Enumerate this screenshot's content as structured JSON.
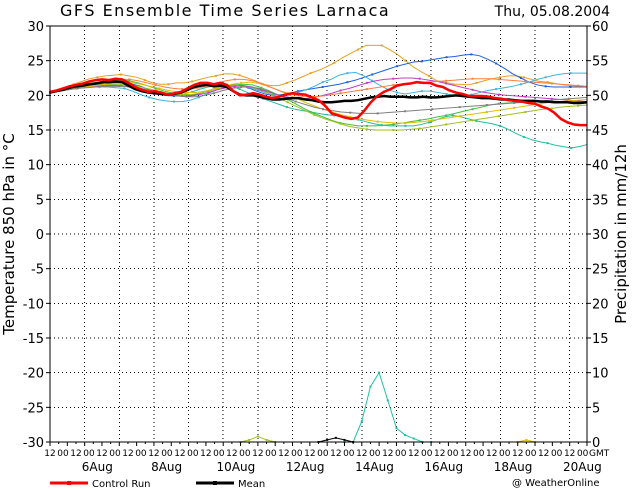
{
  "chart_data": {
    "type": "line",
    "title": "GFS Ensemble Time Series Larnaca",
    "date": "Thu, 05.08.2004",
    "ylabel_left": "Temperature 850 hPa in °C",
    "ylabel_right": "Precipitation in mm/12h",
    "credit": "@ WeatherOnline",
    "gmt_label": "GMT",
    "ylim_left": [
      -30,
      30
    ],
    "ylim_right": [
      0,
      60
    ],
    "y_ticks_left": [
      -30,
      -25,
      -20,
      -15,
      -10,
      -5,
      0,
      5,
      10,
      15,
      20,
      25,
      30
    ],
    "y_ticks_right": [
      0,
      5,
      10,
      15,
      20,
      25,
      30,
      35,
      40,
      45,
      50,
      55,
      60
    ],
    "x_hours": [
      "12",
      "00",
      "12",
      "00",
      "12",
      "00",
      "12",
      "00",
      "12",
      "00",
      "12",
      "00",
      "12",
      "00",
      "12",
      "00",
      "12",
      "00",
      "12",
      "00",
      "12",
      "00",
      "12",
      "00",
      "12",
      "00",
      "12",
      "00",
      "12",
      "00",
      "12",
      "00",
      "12",
      "00",
      "12",
      "00",
      "12",
      "00",
      "12",
      "00",
      "12",
      "00"
    ],
    "date_labels": [
      {
        "step": 2,
        "text": "6Aug"
      },
      {
        "step": 10,
        "text": "8Aug"
      },
      {
        "step": 18,
        "text": "10Aug"
      },
      {
        "step": 26,
        "text": "12Aug"
      },
      {
        "step": 34,
        "text": "14Aug"
      },
      {
        "step": 42,
        "text": "16Aug"
      },
      {
        "step": 50,
        "text": "18Aug"
      },
      {
        "step": 58,
        "text": "20Aug"
      }
    ],
    "grid": true,
    "x_steps": 62,
    "legend": [
      {
        "name": "Control Run",
        "color": "#ff0000"
      },
      {
        "name": "Mean",
        "color": "#000000"
      }
    ],
    "control": {
      "name": "Control Run",
      "color": "#ff0000",
      "values": [
        20.5,
        20.7,
        21,
        21.3,
        21.5,
        21.7,
        22,
        22.2,
        22.3,
        22.2,
        22.4,
        22.3,
        21.8,
        21.2,
        20.8,
        20.5,
        20.6,
        20.4,
        20.1,
        20.3,
        20.5,
        21,
        21.5,
        21.8,
        21.8,
        21.6,
        21.8,
        21.5,
        20.6,
        20,
        20.1,
        20.3,
        20.1,
        19.8,
        19.6,
        19.8,
        20.1,
        20.3,
        20.2,
        20.1,
        19.7,
        19.3,
        18.5,
        17.4,
        17.1,
        16.8,
        16.6,
        16.8,
        17.8,
        19,
        19.9,
        20.5,
        20.9,
        21.4,
        21.6,
        21.7,
        21.9,
        21.8,
        21.8,
        21.4,
        21.2,
        20.7,
        20.4,
        20.2,
        19.9,
        19.9,
        19.9,
        19.8,
        19.6,
        19.5,
        19.3,
        19.2,
        19.1,
        18.9,
        18.8,
        18.4,
        18.1,
        17.5,
        16.6,
        16.1,
        15.8,
        15.7,
        15.7
      ]
    },
    "mean": {
      "name": "Mean",
      "color": "#000000",
      "values": [
        20.4,
        20.6,
        20.8,
        21.1,
        21.3,
        21.4,
        21.6,
        21.7,
        21.9,
        21.9,
        22,
        21.9,
        21.4,
        20.9,
        20.6,
        20.4,
        20.3,
        20.2,
        20.1,
        20.2,
        20.4,
        20.8,
        21.2,
        21.4,
        21.5,
        21.3,
        21.4,
        21.2,
        20.6,
        20.1,
        20,
        20,
        19.8,
        19.6,
        19.4,
        19.4,
        19.5,
        19.6,
        19.6,
        19.4,
        19.3,
        19.1,
        19,
        19,
        19.1,
        19.2,
        19.2,
        19.3,
        19.5,
        19.7,
        19.8,
        19.9,
        19.8,
        19.8,
        19.8,
        19.7,
        19.7,
        19.8,
        19.7,
        19.7,
        19.8,
        19.9,
        20,
        19.9,
        19.8,
        19.7,
        19.6,
        19.6,
        19.5,
        19.4,
        19.4,
        19.3,
        19.2,
        19.2,
        19.2,
        19.1,
        19.1,
        19,
        19,
        19,
        18.9,
        18.9,
        19
      ]
    },
    "members": [
      {
        "color": "#e8a020",
        "values": [
          20.4,
          20.8,
          21.2,
          21.6,
          22,
          22.4,
          22.6,
          22.8,
          22.9,
          23,
          22.8,
          22.6,
          22.2,
          21.8,
          21.6,
          21.6,
          21.8,
          21.8,
          22,
          22.3,
          22.6,
          22.8,
          23.1,
          23.1,
          22.9,
          22.5,
          22.1,
          21.6,
          21.4,
          21.4,
          21.8,
          22.2,
          22.7,
          23.2,
          23.6,
          24.1,
          24.7,
          25.4,
          26,
          26.6,
          27.2,
          27.2,
          27.2,
          26.6,
          25.9,
          25,
          24.1,
          23.4,
          22.8,
          22.1,
          21.9,
          21.6,
          21.6,
          21.5,
          21.8,
          22.1,
          22.4,
          22.6,
          22.8,
          22.8,
          22.6,
          22.3,
          22,
          21.9,
          21.7,
          21.5,
          21.4,
          21.3,
          21.2
        ]
      },
      {
        "color": "#2060e0",
        "values": [
          20.4,
          20.6,
          20.9,
          21.1,
          21.2,
          21.4,
          21.6,
          21.7,
          21.9,
          21.8,
          21.6,
          21.3,
          20.8,
          20.3,
          20,
          19.9,
          19.9,
          20,
          20.2,
          20.6,
          21,
          21.2,
          21.5,
          21.4,
          21.1,
          20.6,
          20.2,
          20,
          20.1,
          20.3,
          20.6,
          20.8,
          21,
          21.2,
          21.4,
          21.6,
          21.9,
          22.2,
          22.6,
          23,
          23.4,
          23.8,
          24.2,
          24.5,
          24.8,
          24.9,
          25.1,
          25.3,
          25.5,
          25.6,
          25.8,
          25.9,
          25.7,
          25.2,
          24.6,
          23.9,
          23.1,
          22.5,
          21.9,
          21.5,
          21.3,
          21.2,
          21.2,
          21.2,
          21.2,
          21.2
        ]
      },
      {
        "color": "#3cb4e0",
        "values": [
          20.5,
          20.7,
          20.9,
          21,
          21.1,
          21.2,
          21.2,
          21.2,
          21.1,
          21,
          20.6,
          20.1,
          19.7,
          19.4,
          19.2,
          19.1,
          19.1,
          19.3,
          19.7,
          20.2,
          20.7,
          21.1,
          21.4,
          21.5,
          21.2,
          20.8,
          20.4,
          20.1,
          20,
          20.1,
          20.4,
          20.8,
          21.3,
          21.9,
          22.3,
          22.9,
          23.2,
          23.3,
          22.8,
          22.1,
          21.4,
          20.8,
          20.4,
          20.2,
          20.4,
          20.6,
          20.6,
          20.4,
          20.2,
          20,
          19.9,
          20.1,
          20.4,
          20.7,
          20.9,
          21.1,
          21.3,
          21.6,
          21.9,
          22.3,
          22.6,
          22.9,
          23.1,
          23.2,
          23.2,
          23.2
        ]
      },
      {
        "color": "#20c0a0",
        "values": [
          20.4,
          20.6,
          20.9,
          21.1,
          21.3,
          21.4,
          21.5,
          21.5,
          21.5,
          21.4,
          21.2,
          20.9,
          20.6,
          20.3,
          20.1,
          20,
          20,
          20.2,
          20.5,
          20.9,
          21.2,
          21.4,
          21.5,
          21.3,
          20.9,
          20.4,
          19.9,
          19.5,
          19.1,
          18.7,
          18.3,
          18,
          17.8,
          17.6,
          17.4,
          17.2,
          17.1,
          17,
          16.8,
          16.5,
          16.2,
          15.9,
          15.7,
          15.6,
          15.6,
          15.6,
          15.6,
          15.8,
          16.1,
          16.5,
          16.9,
          17.1,
          16.9,
          16.6,
          16.3,
          16.1,
          15.9,
          15.6,
          15.1,
          14.5,
          14,
          13.6,
          13.3,
          13.1,
          12.8,
          12.6,
          12.4,
          12.6,
          12.9
        ]
      },
      {
        "color": "#40c040",
        "values": [
          20.4,
          20.7,
          21,
          21.3,
          21.6,
          21.8,
          22,
          22.1,
          22.2,
          22.1,
          21.8,
          21.4,
          21,
          20.6,
          20.3,
          20.1,
          20.1,
          20.3,
          20.6,
          21,
          21.3,
          21.5,
          21.6,
          21.5,
          21.1,
          20.6,
          20,
          19.4,
          18.7,
          18,
          17.4,
          16.9,
          16.4,
          16,
          15.8,
          15.6,
          15.6,
          15.6,
          15.7,
          15.8,
          16,
          16.2,
          16.4,
          16.6,
          16.9,
          17.1,
          17.4,
          17.7,
          18,
          18.3,
          18.6,
          18.8,
          18.9,
          19,
          19.1,
          19.1,
          19.1,
          19.1,
          19.1,
          19.1,
          19.1,
          19.1
        ]
      },
      {
        "color": "#a0c020",
        "values": [
          20.4,
          20.6,
          20.8,
          21,
          21.2,
          21.4,
          21.5,
          21.6,
          21.6,
          21.5,
          21.3,
          21,
          20.7,
          20.4,
          20.2,
          20.1,
          20.1,
          20.3,
          20.6,
          21,
          21.2,
          21.4,
          21.3,
          21.1,
          20.7,
          20.2,
          19.6,
          19,
          18.4,
          17.8,
          17.2,
          16.7,
          16.3,
          15.9,
          15.5,
          15.3,
          15.1,
          15,
          15,
          15,
          15,
          15.1,
          15.2,
          15.4,
          15.6,
          15.8,
          16,
          16.2,
          16.4,
          16.6,
          16.8,
          17,
          17.2,
          17.4,
          17.6,
          17.8,
          18,
          18.1,
          18.3,
          18.4,
          18.5,
          18.6
        ]
      },
      {
        "color": "#c040c0",
        "values": [
          20.4,
          20.6,
          20.8,
          21,
          21.2,
          21.3,
          21.4,
          21.4,
          21.4,
          21.3,
          21.1,
          20.8,
          20.5,
          20.2,
          20,
          19.9,
          19.9,
          20.1,
          20.4,
          20.8,
          21.1,
          21.3,
          21.4,
          21.2,
          20.8,
          20.4,
          20,
          19.7,
          19.5,
          19.5,
          19.7,
          20,
          20.3,
          20.7,
          21,
          21.4,
          21.8,
          22.1,
          22.3,
          22.4,
          22.5,
          22.5,
          22.4,
          22.2,
          22,
          21.7,
          21.4,
          21.1,
          20.8,
          20.5,
          20.3,
          20.1,
          20,
          19.9,
          19.8,
          19.7,
          19.6,
          19.5,
          19.4,
          19.3,
          19.2,
          19.1
        ]
      },
      {
        "color": "#e0c000",
        "values": [
          20.4,
          20.6,
          20.8,
          21,
          21.2,
          21.4,
          21.6,
          21.7,
          21.8,
          21.8,
          21.6,
          21.3,
          21,
          20.7,
          20.5,
          20.4,
          20.4,
          20.6,
          20.9,
          21.3,
          21.6,
          21.8,
          21.9,
          21.7,
          21.3,
          20.8,
          20.2,
          19.6,
          19,
          18.5,
          18,
          17.6,
          17.2,
          16.9,
          16.6,
          16.4,
          16.2,
          16.1,
          16,
          16,
          16.1,
          16.2,
          16.4,
          16.6,
          16.8,
          17,
          17.2,
          17.4,
          17.6,
          17.8,
          18,
          18.2,
          18.4,
          18.6,
          18.8,
          19,
          19.1,
          19.2,
          19.3,
          19.4
        ]
      },
      {
        "color": "#ff8040",
        "values": [
          20.4,
          20.6,
          20.9,
          21.2,
          21.5,
          21.8,
          22,
          22.2,
          22.3,
          22.3,
          22.1,
          21.8,
          21.5,
          21.2,
          21,
          20.9,
          20.9,
          21.1,
          21.4,
          21.8,
          22.1,
          22.3,
          22.3,
          22.1,
          21.7,
          21.2,
          20.7,
          20.3,
          20,
          19.8,
          19.8,
          19.9,
          20.1,
          20.3,
          20.5,
          20.7,
          20.9,
          21.1,
          21.3,
          21.5,
          21.6,
          21.7,
          21.8,
          21.9,
          22,
          22.1,
          22.2,
          22.3,
          22.4,
          22.4,
          22.4,
          22.3,
          22.2,
          22.1,
          22,
          21.9,
          21.8,
          21.7,
          21.6,
          21.5,
          21.4,
          21.3
        ]
      },
      {
        "color": "#808080",
        "values": [
          20.4,
          20.6,
          20.8,
          21,
          21.1,
          21.2,
          21.3,
          21.3,
          21.3,
          21.2,
          21,
          20.7,
          20.4,
          20.1,
          19.9,
          19.8,
          19.8,
          20,
          20.3,
          20.7,
          21,
          21.2,
          21.2,
          21,
          20.6,
          20.1,
          19.6,
          19.1,
          18.7,
          18.3,
          18,
          17.8,
          17.6,
          17.5,
          17.4,
          17.4,
          17.4,
          17.5,
          17.6,
          17.7,
          17.8,
          17.9,
          18,
          18.1,
          18.2,
          18.3,
          18.4,
          18.5,
          18.6,
          18.7,
          18.8,
          18.9,
          19,
          19.1,
          19.2,
          19.3,
          19.4,
          19.5,
          19.6,
          19.7
        ]
      }
    ],
    "precip": [
      {
        "color": "#20c0a0",
        "points": [
          [
            34,
            0
          ],
          [
            35,
            0
          ],
          [
            36,
            3
          ],
          [
            37,
            8
          ],
          [
            38,
            10
          ],
          [
            39,
            6
          ],
          [
            40,
            2
          ],
          [
            41,
            1
          ],
          [
            42,
            0.5
          ],
          [
            43,
            0
          ],
          [
            44,
            0
          ]
        ]
      },
      {
        "color": "#a0c020",
        "points": [
          [
            22,
            0
          ],
          [
            23,
            0.3
          ],
          [
            24,
            0.8
          ],
          [
            25,
            0.3
          ],
          [
            26,
            0
          ]
        ]
      },
      {
        "color": "#000000",
        "points": [
          [
            31,
            0
          ],
          [
            32,
            0.3
          ],
          [
            33,
            0.6
          ],
          [
            34,
            0.3
          ],
          [
            35,
            0
          ]
        ]
      },
      {
        "color": "#e0c000",
        "points": [
          [
            54,
            0
          ],
          [
            55,
            0.3
          ],
          [
            56,
            0
          ]
        ]
      }
    ]
  }
}
